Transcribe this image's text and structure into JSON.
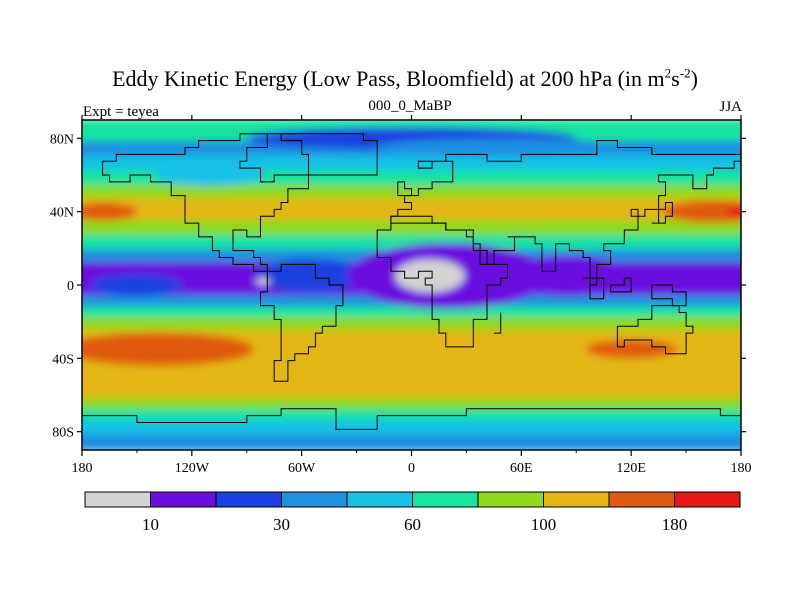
{
  "chart_data": {
    "type": "heatmap",
    "title_main": "Eddy Kinetic Energy (Low Pass, Bloomfield) at 200 hPa (in m",
    "title_sup1": "2",
    "title_mid": "s",
    "title_sup2": "-2",
    "title_end": ")",
    "subtitle_left": "Expt = teyea",
    "subtitle_center": "000_0_MaBP",
    "subtitle_right": "JJA",
    "x_ticks": [
      {
        "value": -180,
        "label": "180"
      },
      {
        "value": -120,
        "label": "120W"
      },
      {
        "value": -60,
        "label": "60W"
      },
      {
        "value": 0,
        "label": "0"
      },
      {
        "value": 60,
        "label": "60E"
      },
      {
        "value": 120,
        "label": "120E"
      },
      {
        "value": 180,
        "label": "180"
      }
    ],
    "y_ticks": [
      {
        "value": 80,
        "label": "80N"
      },
      {
        "value": 40,
        "label": "40N"
      },
      {
        "value": 0,
        "label": "0"
      },
      {
        "value": -40,
        "label": "40S"
      },
      {
        "value": -80,
        "label": "80S"
      }
    ],
    "xlim": [
      -180,
      180
    ],
    "ylim": [
      -90,
      90
    ],
    "colorbar": {
      "colors": [
        "#d3d3d3",
        "#6a0ddf",
        "#1a3fe0",
        "#1f8fe0",
        "#17c2e6",
        "#19e3a0",
        "#8ed81e",
        "#e3b616",
        "#e05a10",
        "#e81818"
      ],
      "labels": [
        {
          "after_box": 1,
          "text": "10"
        },
        {
          "after_box": 3,
          "text": "30"
        },
        {
          "after_box": 5,
          "text": "60"
        },
        {
          "after_box": 7,
          "text": "100"
        },
        {
          "after_box": 9,
          "text": "180"
        }
      ]
    },
    "zonal_bands": [
      {
        "lat": [
          78,
          90
        ],
        "level": 5
      },
      {
        "lat": [
          70,
          78
        ],
        "level": 3
      },
      {
        "lat": [
          62,
          70
        ],
        "level": 4
      },
      {
        "lat": [
          54,
          62
        ],
        "level": 5
      },
      {
        "lat": [
          47,
          54
        ],
        "level": 6
      },
      {
        "lat": [
          35,
          47
        ],
        "level": 7
      },
      {
        "lat": [
          27,
          35
        ],
        "level": 6
      },
      {
        "lat": [
          19,
          27
        ],
        "level": 5
      },
      {
        "lat": [
          12,
          19
        ],
        "level": 3
      },
      {
        "lat": [
          -6,
          12
        ],
        "level": 1
      },
      {
        "lat": [
          -12,
          -6
        ],
        "level": 3
      },
      {
        "lat": [
          -18,
          -12
        ],
        "level": 5
      },
      {
        "lat": [
          -25,
          -18
        ],
        "level": 6
      },
      {
        "lat": [
          -62,
          -25
        ],
        "level": 7
      },
      {
        "lat": [
          -68,
          -62
        ],
        "level": 6
      },
      {
        "lat": [
          -74,
          -68
        ],
        "level": 5
      },
      {
        "lat": [
          -82,
          -74
        ],
        "level": 4
      },
      {
        "lat": [
          -90,
          -82
        ],
        "level": 3
      }
    ],
    "blobs": [
      {
        "lon": -168,
        "lat": 40,
        "rlon": 18,
        "rlat": 5,
        "level": 8
      },
      {
        "lon": 165,
        "lat": 40,
        "rlon": 28,
        "rlat": 6,
        "level": 8
      },
      {
        "lon": 178,
        "lat": 40,
        "rlon": 6,
        "rlat": 3,
        "level": 9
      },
      {
        "lon": -138,
        "lat": -35,
        "rlon": 52,
        "rlat": 9,
        "level": 8
      },
      {
        "lon": 120,
        "lat": -35,
        "rlon": 25,
        "rlat": 5,
        "level": 8
      },
      {
        "lon": -150,
        "lat": 0,
        "rlon": 25,
        "rlat": 6,
        "level": 2
      },
      {
        "lon": -55,
        "lat": 5,
        "rlon": 30,
        "rlat": 9,
        "level": 2
      },
      {
        "lon": 20,
        "lat": 5,
        "rlon": 55,
        "rlat": 18,
        "level": 1
      },
      {
        "lon": 85,
        "lat": 5,
        "rlon": 35,
        "rlat": 11,
        "level": 1
      },
      {
        "lon": 10,
        "lat": 5,
        "rlon": 19,
        "rlat": 9,
        "level": 0
      },
      {
        "lon": -81,
        "lat": 2,
        "rlon": 4,
        "rlat": 2,
        "level": 0
      },
      {
        "lon": 0,
        "lat": 80,
        "rlon": 90,
        "rlat": 6,
        "level": 2
      },
      {
        "lon": 50,
        "lat": 75,
        "rlon": 70,
        "rlat": 5,
        "level": 3
      },
      {
        "lon": -110,
        "lat": 60,
        "rlon": 30,
        "rlat": 6,
        "level": 4
      }
    ],
    "land_outlines": [
      [
        [
          -168,
          66
        ],
        [
          -160,
          72
        ],
        [
          -140,
          72
        ],
        [
          -125,
          74
        ],
        [
          -115,
          80
        ],
        [
          -95,
          82
        ],
        [
          -75,
          84
        ],
        [
          -62,
          82
        ],
        [
          -78,
          74
        ],
        [
          -90,
          69
        ],
        [
          -95,
          62
        ],
        [
          -82,
          55
        ],
        [
          -75,
          60
        ],
        [
          -65,
          60
        ],
        [
          -58,
          52
        ],
        [
          -66,
          45
        ],
        [
          -70,
          42
        ],
        [
          -76,
          36
        ],
        [
          -81,
          30
        ],
        [
          -83,
          25
        ],
        [
          -90,
          29
        ],
        [
          -97,
          26
        ],
        [
          -97,
          20
        ],
        [
          -92,
          18
        ],
        [
          -88,
          16
        ],
        [
          -84,
          11
        ],
        [
          -79,
          9
        ],
        [
          -82,
          8
        ],
        [
          -88,
          13
        ],
        [
          -96,
          16
        ],
        [
          -105,
          20
        ],
        [
          -110,
          25
        ],
        [
          -115,
          30
        ],
        [
          -118,
          34
        ],
        [
          -123,
          40
        ],
        [
          -125,
          48
        ],
        [
          -132,
          55
        ],
        [
          -142,
          60
        ],
        [
          -155,
          58
        ],
        [
          -165,
          60
        ],
        [
          -168,
          66
        ]
      ],
      [
        [
          -78,
          8
        ],
        [
          -72,
          12
        ],
        [
          -62,
          10
        ],
        [
          -52,
          5
        ],
        [
          -45,
          0
        ],
        [
          -36,
          -5
        ],
        [
          -38,
          -13
        ],
        [
          -40,
          -22
        ],
        [
          -48,
          -28
        ],
        [
          -53,
          -34
        ],
        [
          -58,
          -38
        ],
        [
          -62,
          -40
        ],
        [
          -66,
          -46
        ],
        [
          -68,
          -52
        ],
        [
          -74,
          -52
        ],
        [
          -74,
          -42
        ],
        [
          -72,
          -30
        ],
        [
          -70,
          -18
        ],
        [
          -76,
          -12
        ],
        [
          -81,
          -5
        ],
        [
          -80,
          0
        ],
        [
          -78,
          8
        ]
      ],
      [
        [
          -55,
          60
        ],
        [
          -45,
          60
        ],
        [
          -20,
          70
        ],
        [
          -18,
          78
        ],
        [
          -28,
          83
        ],
        [
          -55,
          82
        ],
        [
          -70,
          78
        ],
        [
          -60,
          72
        ],
        [
          -55,
          60
        ]
      ],
      [
        [
          -10,
          36
        ],
        [
          -6,
          43
        ],
        [
          -1,
          46
        ],
        [
          -4,
          48
        ],
        [
          2,
          51
        ],
        [
          8,
          54
        ],
        [
          10,
          57
        ],
        [
          12,
          56
        ],
        [
          18,
          55
        ],
        [
          22,
          60
        ],
        [
          24,
          66
        ],
        [
          20,
          69
        ],
        [
          15,
          69
        ],
        [
          5,
          62
        ],
        [
          10,
          68
        ],
        [
          20,
          71
        ],
        [
          30,
          71
        ],
        [
          40,
          67
        ],
        [
          45,
          68
        ],
        [
          60,
          70
        ],
        [
          70,
          73
        ],
        [
          80,
          73
        ],
        [
          100,
          77
        ],
        [
          112,
          74
        ],
        [
          130,
          72
        ],
        [
          150,
          72
        ],
        [
          170,
          70
        ],
        [
          180,
          68
        ],
        [
          178,
          64
        ],
        [
          165,
          60
        ],
        [
          160,
          54
        ],
        [
          155,
          59
        ],
        [
          142,
          59
        ],
        [
          135,
          55
        ],
        [
          140,
          50
        ],
        [
          135,
          43
        ],
        [
          128,
          38
        ],
        [
          125,
          40
        ],
        [
          120,
          38
        ],
        [
          122,
          30
        ],
        [
          118,
          24
        ],
        [
          108,
          21
        ],
        [
          106,
          18
        ],
        [
          110,
          12
        ],
        [
          105,
          10
        ],
        [
          100,
          13
        ],
        [
          100,
          6
        ],
        [
          103,
          1
        ],
        [
          98,
          8
        ],
        [
          98,
          16
        ],
        [
          93,
          20
        ],
        [
          88,
          22
        ],
        [
          80,
          15
        ],
        [
          77,
          8
        ],
        [
          73,
          18
        ],
        [
          70,
          22
        ],
        [
          66,
          25
        ],
        [
          58,
          25
        ],
        [
          56,
          27
        ],
        [
          52,
          26
        ],
        [
          57,
          22
        ],
        [
          55,
          17
        ],
        [
          45,
          13
        ],
        [
          43,
          17
        ],
        [
          38,
          22
        ],
        [
          34,
          28
        ],
        [
          32,
          31
        ],
        [
          28,
          31
        ],
        [
          20,
          32
        ],
        [
          10,
          34
        ],
        [
          -10,
          36
        ]
      ],
      [
        [
          -17,
          21
        ],
        [
          -17,
          15
        ],
        [
          -12,
          8
        ],
        [
          -5,
          5
        ],
        [
          5,
          6
        ],
        [
          10,
          4
        ],
        [
          9,
          -1
        ],
        [
          12,
          -5
        ],
        [
          13,
          -12
        ],
        [
          12,
          -17
        ],
        [
          15,
          -25
        ],
        [
          17,
          -30
        ],
        [
          20,
          -35
        ],
        [
          27,
          -34
        ],
        [
          32,
          -28
        ],
        [
          35,
          -24
        ],
        [
          35,
          -18
        ],
        [
          40,
          -15
        ],
        [
          40,
          -6
        ],
        [
          42,
          0
        ],
        [
          48,
          5
        ],
        [
          51,
          11
        ],
        [
          44,
          11
        ],
        [
          38,
          18
        ],
        [
          33,
          28
        ],
        [
          30,
          31
        ],
        [
          20,
          32
        ],
        [
          10,
          37
        ],
        [
          0,
          36
        ],
        [
          -10,
          30
        ],
        [
          -17,
          21
        ]
      ],
      [
        [
          114,
          -22
        ],
        [
          122,
          -18
        ],
        [
          130,
          -12
        ],
        [
          137,
          -12
        ],
        [
          142,
          -11
        ],
        [
          145,
          -15
        ],
        [
          150,
          -22
        ],
        [
          153,
          -28
        ],
        [
          150,
          -36
        ],
        [
          145,
          -38
        ],
        [
          138,
          -35
        ],
        [
          130,
          -31
        ],
        [
          118,
          -35
        ],
        [
          115,
          -34
        ],
        [
          114,
          -26
        ],
        [
          114,
          -22
        ]
      ],
      [
        [
          -180,
          -72
        ],
        [
          -150,
          -76
        ],
        [
          -120,
          -74
        ],
        [
          -90,
          -72
        ],
        [
          -70,
          -66
        ],
        [
          -60,
          -68
        ],
        [
          -40,
          -78
        ],
        [
          -20,
          -72
        ],
        [
          0,
          -70
        ],
        [
          30,
          -69
        ],
        [
          60,
          -67
        ],
        [
          90,
          -66
        ],
        [
          120,
          -66
        ],
        [
          150,
          -68
        ],
        [
          170,
          -72
        ],
        [
          180,
          -74
        ]
      ],
      [
        [
          130,
          32
        ],
        [
          135,
          34
        ],
        [
          140,
          36
        ],
        [
          141,
          40
        ],
        [
          142,
          44
        ],
        [
          138,
          40
        ],
        [
          134,
          34
        ],
        [
          130,
          32
        ]
      ],
      [
        [
          -6,
          50
        ],
        [
          0,
          51
        ],
        [
          0,
          54
        ],
        [
          -3,
          58
        ],
        [
          -5,
          58
        ],
        [
          -3,
          55
        ],
        [
          -6,
          50
        ]
      ],
      [
        [
          95,
          4
        ],
        [
          105,
          -6
        ],
        [
          98,
          2
        ],
        [
          95,
          4
        ]
      ],
      [
        [
          109,
          1
        ],
        [
          118,
          5
        ],
        [
          119,
          -3
        ],
        [
          112,
          -3
        ],
        [
          109,
          1
        ]
      ],
      [
        [
          131,
          -1
        ],
        [
          141,
          -2
        ],
        [
          150,
          -10
        ],
        [
          141,
          -9
        ],
        [
          131,
          -1
        ]
      ],
      [
        [
          44,
          -25
        ],
        [
          49,
          -15
        ],
        [
          50,
          -16
        ],
        [
          47,
          -25
        ],
        [
          44,
          -25
        ]
      ]
    ]
  }
}
